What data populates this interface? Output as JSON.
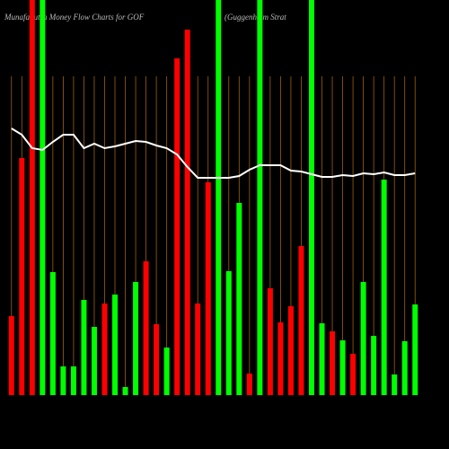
{
  "chart_data": {
    "type": "bar",
    "title": "MunafaSutra  Money Flow  Charts for GOF",
    "subtitle": "(Guggenheim Strat",
    "categories": [
      null,
      null,
      null,
      null,
      null,
      null,
      null,
      null,
      null,
      null,
      null,
      null,
      null,
      null,
      null,
      null,
      null,
      null,
      null,
      null,
      null,
      null,
      null,
      null,
      null,
      null,
      null,
      null,
      null,
      null,
      null,
      null,
      null,
      null,
      null,
      null,
      null,
      null,
      null,
      null
    ],
    "values": [
      88,
      264,
      440,
      440,
      137,
      32,
      32,
      106,
      76,
      102,
      112,
      9,
      126,
      149,
      79,
      53,
      375,
      407,
      102,
      237,
      440,
      138,
      214,
      24,
      440,
      119,
      81,
      99,
      166,
      440,
      80,
      71,
      61,
      46,
      126,
      66,
      240,
      23,
      60,
      101
    ],
    "colors": [
      "#ff0000",
      "#ff0000",
      "#ff0000",
      "#00ff00",
      "#00ff00",
      "#00ff00",
      "#00ff00",
      "#00ff00",
      "#00ff00",
      "#ff0000",
      "#00ff00",
      "#00ff00",
      "#00ff00",
      "#ff0000",
      "#ff0000",
      "#00ff00",
      "#ff0000",
      "#ff0000",
      "#ff0000",
      "#ff0000",
      "#00ff00",
      "#00ff00",
      "#00ff00",
      "#ff0000",
      "#00ff00",
      "#ff0000",
      "#ff0000",
      "#ff0000",
      "#ff0000",
      "#00ff00",
      "#00ff00",
      "#ff0000",
      "#00ff00",
      "#ff0000",
      "#00ff00",
      "#00ff00",
      "#00ff00",
      "#00ff00",
      "#00ff00",
      "#00ff00"
    ],
    "line_values": [
      297,
      290,
      275,
      273,
      282,
      290,
      290,
      275,
      280,
      275,
      277,
      280,
      283,
      282,
      278,
      275,
      268,
      254,
      242,
      242,
      242,
      242,
      244,
      251,
      256,
      256,
      256,
      250,
      249,
      246,
      243,
      243,
      245,
      244,
      247,
      246,
      248,
      245,
      245,
      247
    ],
    "line_color": "#ffffff",
    "grid_color": "#a0600a"
  }
}
